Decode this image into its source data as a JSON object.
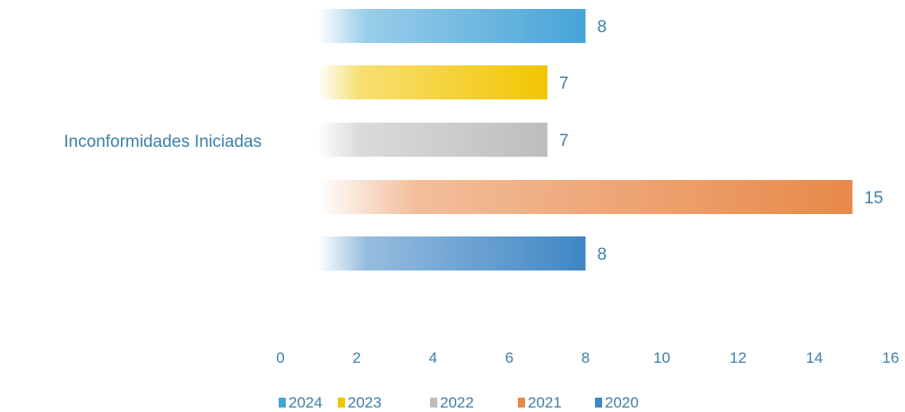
{
  "chart_data": {
    "type": "bar",
    "orientation": "horizontal",
    "categories": [
      "Inconformidades Iniciadas"
    ],
    "series": [
      {
        "name": "2024",
        "values": [
          8
        ],
        "color": "#46a4d8"
      },
      {
        "name": "2023",
        "values": [
          7
        ],
        "color": "#f2c500"
      },
      {
        "name": "2022",
        "values": [
          7
        ],
        "color": "#bdbdbd"
      },
      {
        "name": "2021",
        "values": [
          15
        ],
        "color": "#e8894a"
      },
      {
        "name": "2020",
        "values": [
          8
        ],
        "color": "#3f86c4"
      }
    ],
    "xlim": [
      0,
      16
    ],
    "xticks": [
      "0",
      "2",
      "4",
      "6",
      "8",
      "10",
      "12",
      "14",
      "16"
    ],
    "grid": false,
    "legend": "bottom",
    "data_labels": true
  }
}
